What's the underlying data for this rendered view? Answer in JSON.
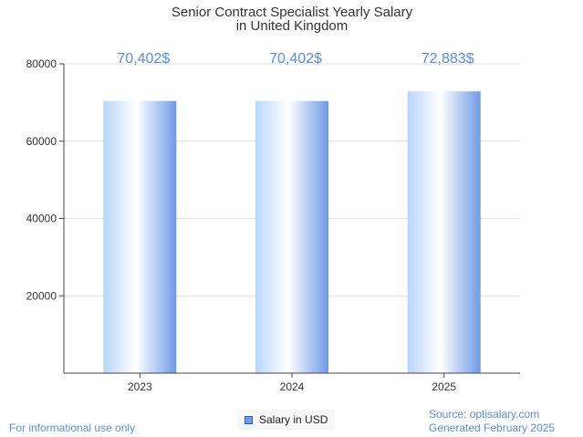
{
  "chart_data": {
    "type": "bar",
    "title_lines": [
      "Senior Contract Specialist Yearly Salary",
      "in United Kingdom"
    ],
    "categories": [
      "2023",
      "2024",
      "2025"
    ],
    "series": [
      {
        "name": "Salary in USD",
        "values": [
          70402,
          70402,
          72883
        ]
      }
    ],
    "data_labels": [
      "70,402$",
      "70,402$",
      "72,883$"
    ],
    "y_ticks": [
      20000,
      40000,
      60000,
      80000
    ],
    "ylim": [
      0,
      80000
    ],
    "grid": true,
    "legend_position": "bottom-center"
  },
  "colors": {
    "bar_dark": "#6f9ae6",
    "bar_light": "#ffffff",
    "bar_mid": "#b9d6fb",
    "label": "#5b8fd6",
    "grid": "#e0e0e0",
    "axis": "#444444",
    "legend_swatch": "#6f9ae6"
  },
  "footer": {
    "disclaimer": "For informational use only",
    "source": "Source: optisalary.com",
    "generated": "Generated February 2025"
  }
}
